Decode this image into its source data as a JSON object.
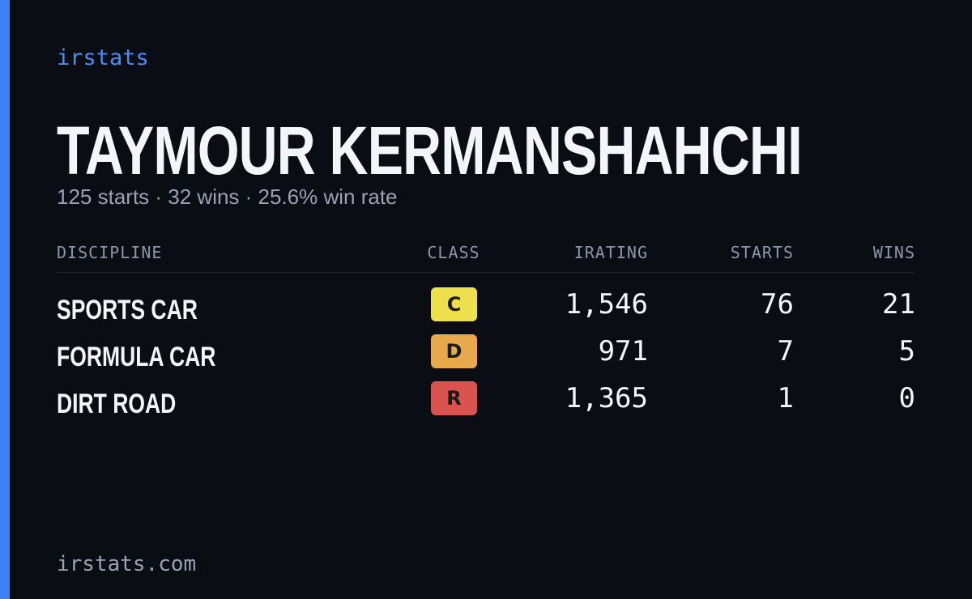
{
  "header": {
    "brand": "irstats",
    "name": "TAYMOUR KERMANSHAHCHI",
    "summary": "125 starts · 32 wins · 25.6% win rate"
  },
  "table": {
    "columns": [
      "DISCIPLINE",
      "CLASS",
      "IRATING",
      "STARTS",
      "WINS"
    ],
    "rows": [
      [
        "SPORTS CAR",
        "C",
        "1,546",
        "76",
        "21"
      ],
      [
        "FORMULA CAR",
        "D",
        "971",
        "7",
        "5"
      ],
      [
        "DIRT ROAD",
        "R",
        "1,365",
        "1",
        "0"
      ]
    ],
    "class_colors": [
      "#eee04c",
      "#e8a94c",
      "#d9534f"
    ]
  },
  "footer": {
    "url": "irstats.com"
  }
}
